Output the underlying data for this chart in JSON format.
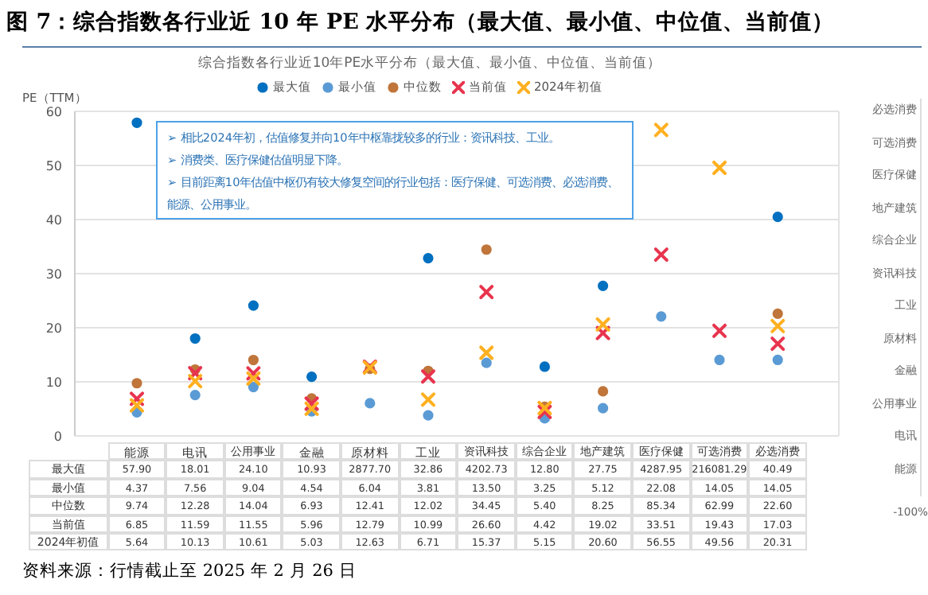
{
  "chart_data": [
    {
      "type": "scatter",
      "title": "图 7：综合指数各行业近 10 年 PE 水平分布（最大值、最小值、中位值、当前值）",
      "subtitle": "综合指数各行业近10年PE水平分布（最大值、最小值、中位值、当前值）",
      "ylabel": "PE（TTM）",
      "categories": [
        "能源",
        "电讯",
        "公用事业",
        "金融",
        "原材料",
        "工业",
        "资讯科技",
        "综合企业",
        "地产建筑",
        "医疗保健",
        "可选消费",
        "必选消费"
      ],
      "series": [
        {
          "name": "最大值",
          "color": "#0070c0",
          "marker": "circle",
          "values": [
            57.9,
            18.01,
            24.1,
            10.93,
            null,
            32.86,
            null,
            12.8,
            27.75,
            null,
            null,
            40.49
          ],
          "value_labels": [
            "57.90",
            "18.01",
            "24.10",
            "10.93",
            "2877.70",
            "32.86",
            "4202.73",
            "12.80",
            "27.75",
            "4287.95",
            "216081.29",
            "40.49"
          ]
        },
        {
          "name": "最小值",
          "color": "#5b9bd5",
          "marker": "circle",
          "values": [
            4.37,
            7.56,
            9.04,
            4.54,
            6.04,
            3.81,
            13.5,
            3.25,
            5.12,
            22.08,
            14.05,
            14.05
          ],
          "value_labels": [
            "4.37",
            "7.56",
            "9.04",
            "4.54",
            "6.04",
            "3.81",
            "13.50",
            "3.25",
            "5.12",
            "22.08",
            "14.05",
            "14.05"
          ]
        },
        {
          "name": "中位数",
          "color": "#c0753a",
          "marker": "circle",
          "values": [
            9.74,
            12.28,
            14.04,
            6.93,
            12.41,
            12.02,
            34.45,
            5.4,
            8.25,
            null,
            null,
            22.6
          ],
          "value_labels": [
            "9.74",
            "12.28",
            "14.04",
            "6.93",
            "12.41",
            "12.02",
            "34.45",
            "5.40",
            "8.25",
            "85.34",
            "62.99",
            "22.60"
          ]
        },
        {
          "name": "当前值",
          "color": "#e8344e",
          "marker": "cross",
          "values": [
            6.85,
            11.59,
            11.55,
            5.96,
            12.79,
            10.99,
            26.6,
            4.42,
            19.02,
            33.51,
            19.43,
            17.03
          ],
          "value_labels": [
            "6.85",
            "11.59",
            "11.55",
            "5.96",
            "12.79",
            "10.99",
            "26.60",
            "4.42",
            "19.02",
            "33.51",
            "19.43",
            "17.03"
          ]
        },
        {
          "name": "2024年初值",
          "color": "#ffb020",
          "marker": "cross",
          "values": [
            5.64,
            10.13,
            10.61,
            5.03,
            12.63,
            6.71,
            15.37,
            5.15,
            20.6,
            56.55,
            49.56,
            20.31
          ],
          "value_labels": [
            "5.64",
            "10.13",
            "10.61",
            "5.03",
            "12.63",
            "6.71",
            "15.37",
            "5.15",
            "20.60",
            "56.55",
            "49.56",
            "20.31"
          ]
        }
      ],
      "ylim": [
        0,
        60
      ],
      "yticks": [
        0,
        10,
        20,
        30,
        40,
        50,
        60
      ],
      "grid": true,
      "legend": "top",
      "annotations": [
        "➢ 相比2024年初，估值修复并向10年中枢靠拢较多的行业：资讯科技、工业。",
        "➢ 消费类、医疗保健估值明显下降。",
        "➢ 目前距离10年估值中枢仍有较大修复空间的行业包括：医疗保健、可选消费、必选消费、能源、公用事业。",
        "资料来源：行情截止至 2025 年 2 月 26 日"
      ]
    },
    {
      "type": "other",
      "categories": [
        "必选消费",
        "可选消费",
        "医疗保健",
        "地产建筑",
        "综合企业",
        "资讯科技",
        "工业",
        "原材料",
        "金融",
        "公用事业",
        "电讯",
        "能源"
      ],
      "annotations": [
        "-100%"
      ]
    }
  ]
}
